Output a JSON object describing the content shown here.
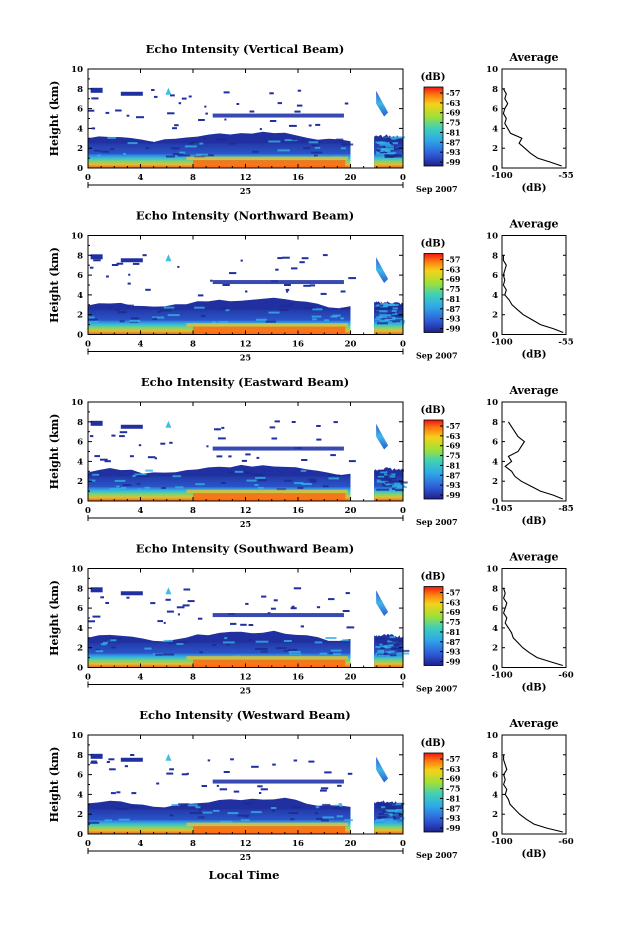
{
  "figure": {
    "xlabel": "Local Time",
    "date_label": "Sep 2007",
    "day_label": "25",
    "ylabel": "Height (km)",
    "colorbar_title": "(dB)",
    "colorbar_ticks": [
      "-57",
      "-63",
      "-69",
      "-75",
      "-81",
      "-87",
      "-93",
      "-99"
    ],
    "avg_title": "Average",
    "avg_xlabel": "(dB)"
  },
  "chart_data": [
    {
      "type": "heatmap",
      "title": "Echo Intensity (Vertical Beam)",
      "xlabel": "Local Time",
      "ylabel": "Height (km)",
      "x_ticks": [
        "0",
        "4",
        "8",
        "12",
        "16",
        "20",
        "0"
      ],
      "xlim": [
        0,
        24
      ],
      "y_ticks": [
        "0",
        "2",
        "4",
        "6",
        "8",
        "10"
      ],
      "ylim": [
        0,
        10
      ],
      "colorbar": {
        "title": "(dB)",
        "range": [
          -99,
          -57
        ]
      },
      "data_gap_hours": [
        20,
        21.8
      ],
      "avg_profile": {
        "xlim": [
          -100,
          -55
        ],
        "x_ticks": [
          "-100",
          "-55"
        ],
        "height_km": [
          0.2,
          0.6,
          1.0,
          1.5,
          2.0,
          2.5,
          3.0,
          3.5,
          4.0,
          4.5,
          5.0,
          5.5,
          6.0,
          6.5,
          7.0,
          7.5,
          8.0
        ],
        "db": [
          -58,
          -66,
          -75,
          -80,
          -84,
          -88,
          -86,
          -94,
          -96,
          -98,
          -97,
          -99,
          -98,
          -96,
          -98,
          -97,
          -99
        ]
      }
    },
    {
      "type": "heatmap",
      "title": "Echo Intensity (Northward Beam)",
      "xlabel": "Local Time",
      "ylabel": "Height (km)",
      "x_ticks": [
        "0",
        "4",
        "8",
        "12",
        "16",
        "20",
        "0"
      ],
      "xlim": [
        0,
        24
      ],
      "y_ticks": [
        "0",
        "2",
        "4",
        "6",
        "8",
        "10"
      ],
      "ylim": [
        0,
        10
      ],
      "colorbar": {
        "title": "(dB)",
        "range": [
          -99,
          -57
        ]
      },
      "data_gap_hours": [
        20,
        21.8
      ],
      "avg_profile": {
        "xlim": [
          -100,
          -55
        ],
        "x_ticks": [
          "-100",
          "-55"
        ],
        "height_km": [
          0.2,
          0.6,
          1.0,
          1.5,
          2.0,
          2.5,
          3.0,
          3.5,
          4.0,
          4.5,
          5.0,
          5.5,
          6.0,
          6.5,
          7.0,
          7.5,
          8.0
        ],
        "db": [
          -57,
          -64,
          -73,
          -79,
          -85,
          -89,
          -93,
          -95,
          -98,
          -97,
          -99,
          -98,
          -99,
          -98,
          -97,
          -99,
          -99
        ]
      }
    },
    {
      "type": "heatmap",
      "title": "Echo Intensity (Eastward Beam)",
      "xlabel": "Local Time",
      "ylabel": "Height (km)",
      "x_ticks": [
        "0",
        "4",
        "8",
        "12",
        "16",
        "20",
        "0"
      ],
      "xlim": [
        0,
        24
      ],
      "y_ticks": [
        "0",
        "2",
        "4",
        "6",
        "8",
        "10"
      ],
      "ylim": [
        0,
        10
      ],
      "colorbar": {
        "title": "(dB)",
        "range": [
          -99,
          -57
        ]
      },
      "data_gap_hours": [
        20,
        21.8
      ],
      "avg_profile": {
        "xlim": [
          -105,
          -85
        ],
        "x_ticks": [
          "-105",
          "-85"
        ],
        "height_km": [
          0.2,
          0.6,
          1.0,
          1.5,
          2.0,
          2.5,
          3.0,
          3.5,
          4.0,
          4.5,
          5.0,
          5.5,
          6.0,
          6.5,
          7.0,
          7.5,
          8.0
        ],
        "db": [
          -86,
          -89,
          -93,
          -96,
          -99,
          -101,
          -102,
          -104,
          -102,
          -103,
          -100,
          -99,
          -98,
          -100,
          -101,
          -102,
          -103
        ]
      }
    },
    {
      "type": "heatmap",
      "title": "Echo Intensity (Southward Beam)",
      "xlabel": "Local Time",
      "ylabel": "Height (km)",
      "x_ticks": [
        "0",
        "4",
        "8",
        "12",
        "16",
        "20",
        "0"
      ],
      "xlim": [
        0,
        24
      ],
      "y_ticks": [
        "0",
        "2",
        "4",
        "6",
        "8",
        "10"
      ],
      "ylim": [
        0,
        10
      ],
      "colorbar": {
        "title": "(dB)",
        "range": [
          -99,
          -57
        ]
      },
      "data_gap_hours": [
        20,
        21.8
      ],
      "avg_profile": {
        "xlim": [
          -100,
          -60
        ],
        "x_ticks": [
          "-100",
          "-60"
        ],
        "height_km": [
          0.2,
          0.6,
          1.0,
          1.5,
          2.0,
          2.5,
          3.0,
          3.5,
          4.0,
          4.5,
          5.0,
          5.5,
          6.0,
          6.5,
          7.0,
          7.5,
          8.0
        ],
        "db": [
          -62,
          -70,
          -78,
          -83,
          -87,
          -90,
          -93,
          -94,
          -96,
          -98,
          -97,
          -99,
          -98,
          -97,
          -99,
          -98,
          -99
        ]
      }
    },
    {
      "type": "heatmap",
      "title": "Echo Intensity (Westward Beam)",
      "xlabel": "Local Time",
      "ylabel": "Height (km)",
      "x_ticks": [
        "0",
        "4",
        "8",
        "12",
        "16",
        "20",
        "0"
      ],
      "xlim": [
        0,
        24
      ],
      "y_ticks": [
        "0",
        "2",
        "4",
        "6",
        "8",
        "10"
      ],
      "ylim": [
        0,
        10
      ],
      "colorbar": {
        "title": "(dB)",
        "range": [
          -99,
          -57
        ]
      },
      "data_gap_hours": [
        20,
        21.8
      ],
      "avg_profile": {
        "xlim": [
          -100,
          -60
        ],
        "x_ticks": [
          "-100",
          "-60"
        ],
        "height_km": [
          0.2,
          0.6,
          1.0,
          1.5,
          2.0,
          2.5,
          3.0,
          3.5,
          4.0,
          4.5,
          5.0,
          5.5,
          6.0,
          6.5,
          7.0,
          7.5,
          8.0
        ],
        "db": [
          -62,
          -72,
          -80,
          -85,
          -89,
          -92,
          -95,
          -96,
          -98,
          -97,
          -99,
          -98,
          -99,
          -97,
          -98,
          -99,
          -99
        ]
      }
    }
  ]
}
